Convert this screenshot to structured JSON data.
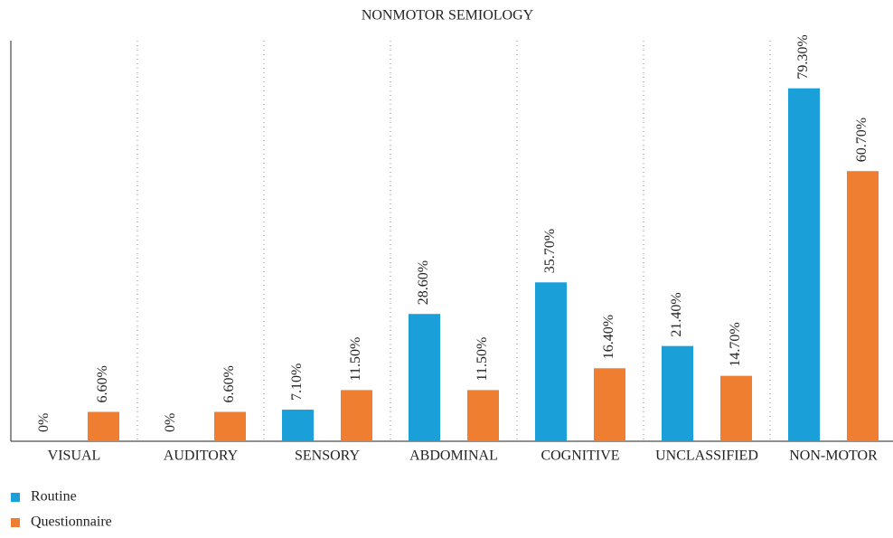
{
  "chart_data": {
    "type": "bar",
    "title": "NONMOTOR SEMIOLOGY",
    "categories": [
      "VISUAL",
      "AUDITORY",
      "SENSORY",
      "ABDOMINAL",
      "COGNITIVE",
      "UNCLASSIFIED",
      "NON-MOTOR"
    ],
    "series": [
      {
        "name": "Routine",
        "color": "#1b9fd8",
        "values": [
          0,
          0,
          7.1,
          28.6,
          35.7,
          21.4,
          79.3
        ],
        "value_labels": [
          "0%",
          "0%",
          "7.10%",
          "28.60%",
          "35.70%",
          "21.40%",
          "79.30%"
        ]
      },
      {
        "name": "Questionnaire",
        "color": "#f07e31",
        "values": [
          6.6,
          6.6,
          11.5,
          11.5,
          16.4,
          14.7,
          60.7
        ],
        "value_labels": [
          "6.60%",
          "6.60%",
          "11.50%",
          "11.50%",
          "16.40%",
          "14.70%",
          "60.70%"
        ]
      }
    ],
    "ylim": [
      0,
      90
    ]
  }
}
